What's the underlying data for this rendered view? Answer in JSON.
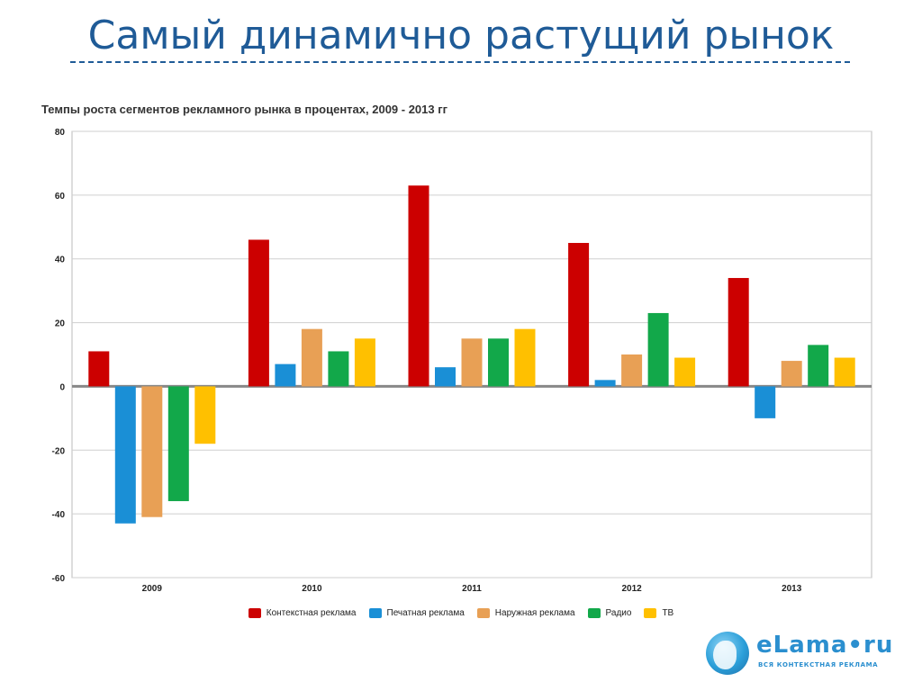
{
  "slide": {
    "title": "Самый динамично растущий рынок"
  },
  "logo": {
    "name": "eLama•ru",
    "tagline": "ВСЯ КОНТЕКСТНАЯ РЕКЛАМА"
  },
  "chart_data": {
    "type": "bar",
    "title": "Темпы роста сегментов рекламного рынка в процентах, 2009 - 2013 гг",
    "xlabel": "",
    "ylabel": "",
    "categories": [
      "2009",
      "2010",
      "2011",
      "2012",
      "2013"
    ],
    "ylim": [
      -60,
      80
    ],
    "yticks": [
      80,
      60,
      40,
      20,
      0,
      -20,
      -40,
      -60
    ],
    "grid": true,
    "legend_position": "bottom",
    "series": [
      {
        "name": "Контекстная реклама",
        "color": "#cc0000",
        "values": [
          11,
          46,
          63,
          45,
          34
        ]
      },
      {
        "name": "Печатная реклама",
        "color": "#1a8fd6",
        "values": [
          -43,
          7,
          6,
          2,
          -10
        ]
      },
      {
        "name": "Наружная реклама",
        "color": "#e8a055",
        "values": [
          -41,
          18,
          15,
          10,
          8
        ]
      },
      {
        "name": "Радио",
        "color": "#12a84a",
        "values": [
          -36,
          11,
          15,
          23,
          13
        ]
      },
      {
        "name": "ТВ",
        "color": "#ffc000",
        "values": [
          -18,
          15,
          18,
          9,
          9
        ]
      }
    ]
  }
}
